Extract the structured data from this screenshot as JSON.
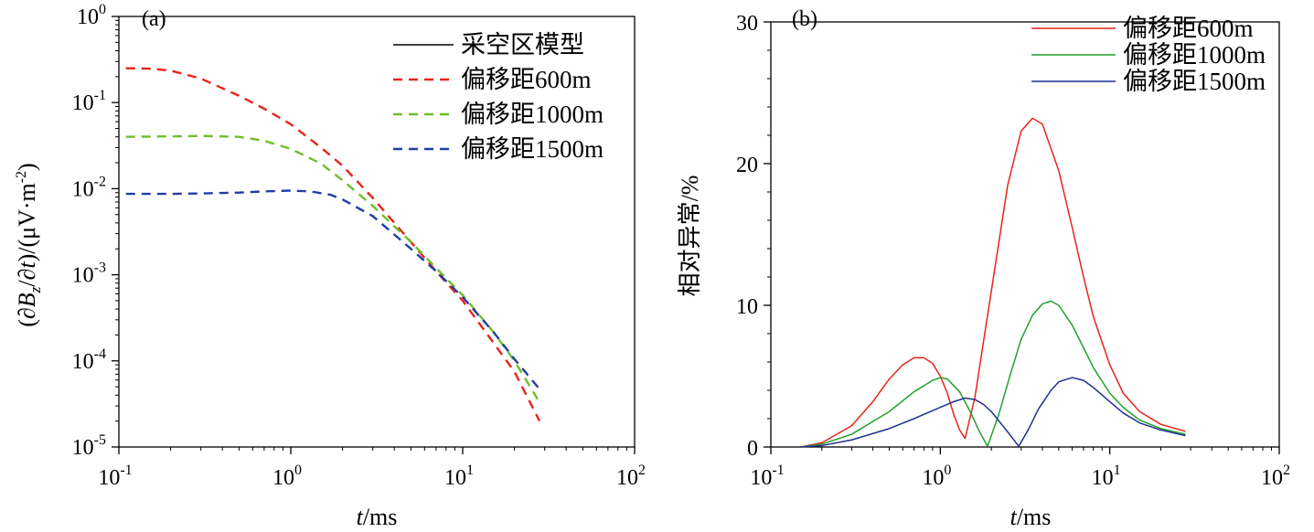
{
  "chart_data": [
    {
      "panel_label": "(a)",
      "type": "line",
      "xlabel": "t/ms",
      "ylabel": "(∂Bz/∂t)/(μV·m⁻²)",
      "xscale": "log",
      "yscale": "log",
      "xlim": [
        0.1,
        100
      ],
      "ylim": [
        1e-05,
        1
      ],
      "x_ticks": [
        {
          "value": 0.1,
          "base": "10",
          "exp": "-1"
        },
        {
          "value": 1,
          "base": "10",
          "exp": "0"
        },
        {
          "value": 10,
          "base": "10",
          "exp": "1"
        },
        {
          "value": 100,
          "base": "10",
          "exp": "2"
        }
      ],
      "y_ticks": [
        {
          "value": 1,
          "base": "10",
          "exp": "0"
        },
        {
          "value": 0.1,
          "base": "10",
          "exp": "-1"
        },
        {
          "value": 0.01,
          "base": "10",
          "exp": "-2"
        },
        {
          "value": 0.001,
          "base": "10",
          "exp": "-3"
        },
        {
          "value": 0.0001,
          "base": "10",
          "exp": "-4"
        },
        {
          "value": 1e-05,
          "base": "10",
          "exp": "-5"
        }
      ],
      "legend_position": "top-right",
      "grid": false,
      "series": [
        {
          "name": "采空区模型",
          "color": "#000000",
          "dash": "solid",
          "x": [],
          "y": []
        },
        {
          "name": "偏移距600m",
          "color": "#e8231a",
          "dash": "dashed",
          "x": [
            0.11,
            0.15,
            0.2,
            0.3,
            0.5,
            0.7,
            1.0,
            1.5,
            2.0,
            3.0,
            5.0,
            7.0,
            10,
            15,
            20,
            28
          ],
          "y": [
            0.25,
            0.248,
            0.235,
            0.19,
            0.12,
            0.085,
            0.056,
            0.03,
            0.0185,
            0.0078,
            0.0024,
            0.0011,
            0.0005,
            0.000165,
            7.5e-05,
            2e-05
          ]
        },
        {
          "name": "偏移距1000m",
          "color": "#6fbf2a",
          "dash": "dashed",
          "x": [
            0.11,
            0.2,
            0.3,
            0.5,
            0.7,
            1.0,
            1.5,
            2.0,
            3.0,
            5.0,
            7.0,
            10,
            15,
            20,
            28
          ],
          "y": [
            0.04,
            0.0405,
            0.041,
            0.04,
            0.036,
            0.029,
            0.0195,
            0.0125,
            0.0063,
            0.0024,
            0.0012,
            0.00058,
            0.00022,
            0.0001,
            3.3e-05
          ]
        },
        {
          "name": "偏移距1500m",
          "color": "#1f3fa3",
          "dash": "dashed",
          "x": [
            0.11,
            0.2,
            0.3,
            0.5,
            0.7,
            1.0,
            1.3,
            1.7,
            2.0,
            3.0,
            5.0,
            7.0,
            10,
            15,
            20,
            28
          ],
          "y": [
            0.0087,
            0.0087,
            0.0088,
            0.009,
            0.0093,
            0.0095,
            0.0093,
            0.0085,
            0.0075,
            0.0048,
            0.002,
            0.0011,
            0.00055,
            0.00022,
            0.000105,
            4.7e-05
          ]
        }
      ]
    },
    {
      "panel_label": "(b)",
      "type": "line",
      "xlabel": "t/ms",
      "ylabel": "相对异常/%",
      "xscale": "log",
      "yscale": "linear",
      "xlim": [
        0.1,
        100
      ],
      "ylim": [
        0,
        30
      ],
      "x_ticks": [
        {
          "value": 0.1,
          "base": "10",
          "exp": "-1"
        },
        {
          "value": 1,
          "base": "10",
          "exp": "0"
        },
        {
          "value": 10,
          "base": "10",
          "exp": "1"
        },
        {
          "value": 100,
          "base": "10",
          "exp": "2"
        }
      ],
      "y_ticks": [
        {
          "value": 0,
          "label": "0"
        },
        {
          "value": 10,
          "label": "10"
        },
        {
          "value": 20,
          "label": "20"
        },
        {
          "value": 30,
          "label": "30"
        }
      ],
      "legend_position": "top-right",
      "grid": false,
      "series": [
        {
          "name": "偏移距600m",
          "color": "#e8231a",
          "dash": "solid",
          "x": [
            0.15,
            0.2,
            0.3,
            0.4,
            0.5,
            0.6,
            0.7,
            0.8,
            0.9,
            1.0,
            1.1,
            1.2,
            1.3,
            1.4,
            1.6,
            2.0,
            2.5,
            3.0,
            3.5,
            4.0,
            5.0,
            6.0,
            7.0,
            8.0,
            10,
            12,
            15,
            20,
            28
          ],
          "y": [
            0,
            0.3,
            1.5,
            3.2,
            4.8,
            5.8,
            6.3,
            6.3,
            5.9,
            5.0,
            3.8,
            2.3,
            1.2,
            0.6,
            3.5,
            11.0,
            18.5,
            22.3,
            23.2,
            22.8,
            19.5,
            15.5,
            12.0,
            9.2,
            5.8,
            3.8,
            2.5,
            1.6,
            1.1
          ]
        },
        {
          "name": "偏移距1000m",
          "color": "#21a02b",
          "dash": "solid",
          "x": [
            0.15,
            0.2,
            0.3,
            0.5,
            0.7,
            0.9,
            1.0,
            1.1,
            1.3,
            1.5,
            1.7,
            1.9,
            2.2,
            2.6,
            3.0,
            3.5,
            4.0,
            4.5,
            5.0,
            6.0,
            7.0,
            8.0,
            10,
            12,
            15,
            20,
            28
          ],
          "y": [
            0,
            0.2,
            0.9,
            2.5,
            3.9,
            4.7,
            4.9,
            4.8,
            3.9,
            2.5,
            1.1,
            0.05,
            2.2,
            5.2,
            7.6,
            9.3,
            10.1,
            10.3,
            10.0,
            8.6,
            7.0,
            5.6,
            3.8,
            2.8,
            1.9,
            1.3,
            0.9
          ]
        },
        {
          "name": "偏移距1500m",
          "color": "#1f2f8f",
          "dash": "solid",
          "x": [
            0.15,
            0.2,
            0.3,
            0.5,
            0.7,
            1.0,
            1.2,
            1.4,
            1.6,
            1.8,
            2.0,
            2.3,
            2.6,
            2.9,
            3.3,
            3.8,
            4.5,
            5.0,
            6.0,
            7.0,
            8.0,
            10,
            12,
            15,
            20,
            28
          ],
          "y": [
            0,
            0.1,
            0.5,
            1.3,
            2.0,
            2.8,
            3.2,
            3.45,
            3.35,
            3.0,
            2.5,
            1.6,
            0.8,
            0.05,
            1.2,
            2.7,
            4.0,
            4.6,
            4.9,
            4.7,
            4.2,
            3.2,
            2.4,
            1.7,
            1.2,
            0.8
          ]
        }
      ]
    }
  ]
}
